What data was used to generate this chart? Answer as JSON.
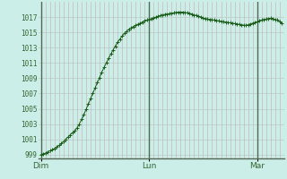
{
  "background_color": "#cceee8",
  "grid_color_h": "#b8ccc8",
  "grid_color_v": "#c8b8b8",
  "grid_color_day": "#556655",
  "line_color": "#1a5e1a",
  "marker_color": "#1a5e1a",
  "ylabel_color": "#336633",
  "xlabel_color": "#336633",
  "ylim": [
    998.5,
    1019.0
  ],
  "yticks": [
    999,
    1001,
    1003,
    1005,
    1007,
    1009,
    1011,
    1013,
    1015,
    1017
  ],
  "day_labels": [
    "Dim",
    "Lun",
    "Mar"
  ],
  "day_positions": [
    0,
    48,
    96
  ],
  "total_points": 108,
  "pressure_data": [
    999.0,
    999.1,
    999.2,
    999.35,
    999.5,
    999.65,
    999.8,
    1000.0,
    1000.2,
    1000.45,
    1000.7,
    1001.0,
    1001.3,
    1001.6,
    1001.85,
    1002.1,
    1002.5,
    1003.0,
    1003.6,
    1004.2,
    1004.9,
    1005.6,
    1006.3,
    1007.0,
    1007.7,
    1008.4,
    1009.1,
    1009.8,
    1010.4,
    1011.0,
    1011.6,
    1012.15,
    1012.7,
    1013.2,
    1013.7,
    1014.1,
    1014.5,
    1014.85,
    1015.15,
    1015.4,
    1015.6,
    1015.75,
    1015.9,
    1016.05,
    1016.2,
    1016.35,
    1016.5,
    1016.6,
    1016.7,
    1016.8,
    1016.9,
    1017.0,
    1017.1,
    1017.2,
    1017.3,
    1017.35,
    1017.4,
    1017.45,
    1017.5,
    1017.55,
    1017.6,
    1017.65,
    1017.65,
    1017.65,
    1017.6,
    1017.55,
    1017.5,
    1017.4,
    1017.3,
    1017.2,
    1017.1,
    1017.0,
    1016.9,
    1016.8,
    1016.75,
    1016.7,
    1016.65,
    1016.6,
    1016.55,
    1016.5,
    1016.45,
    1016.4,
    1016.35,
    1016.3,
    1016.25,
    1016.2,
    1016.15,
    1016.1,
    1016.05,
    1016.0,
    1015.95,
    1015.9,
    1016.0,
    1016.1,
    1016.2,
    1016.3,
    1016.4,
    1016.5,
    1016.6,
    1016.7,
    1016.75,
    1016.8,
    1016.85,
    1016.8,
    1016.7,
    1016.6,
    1016.4,
    1016.2
  ]
}
